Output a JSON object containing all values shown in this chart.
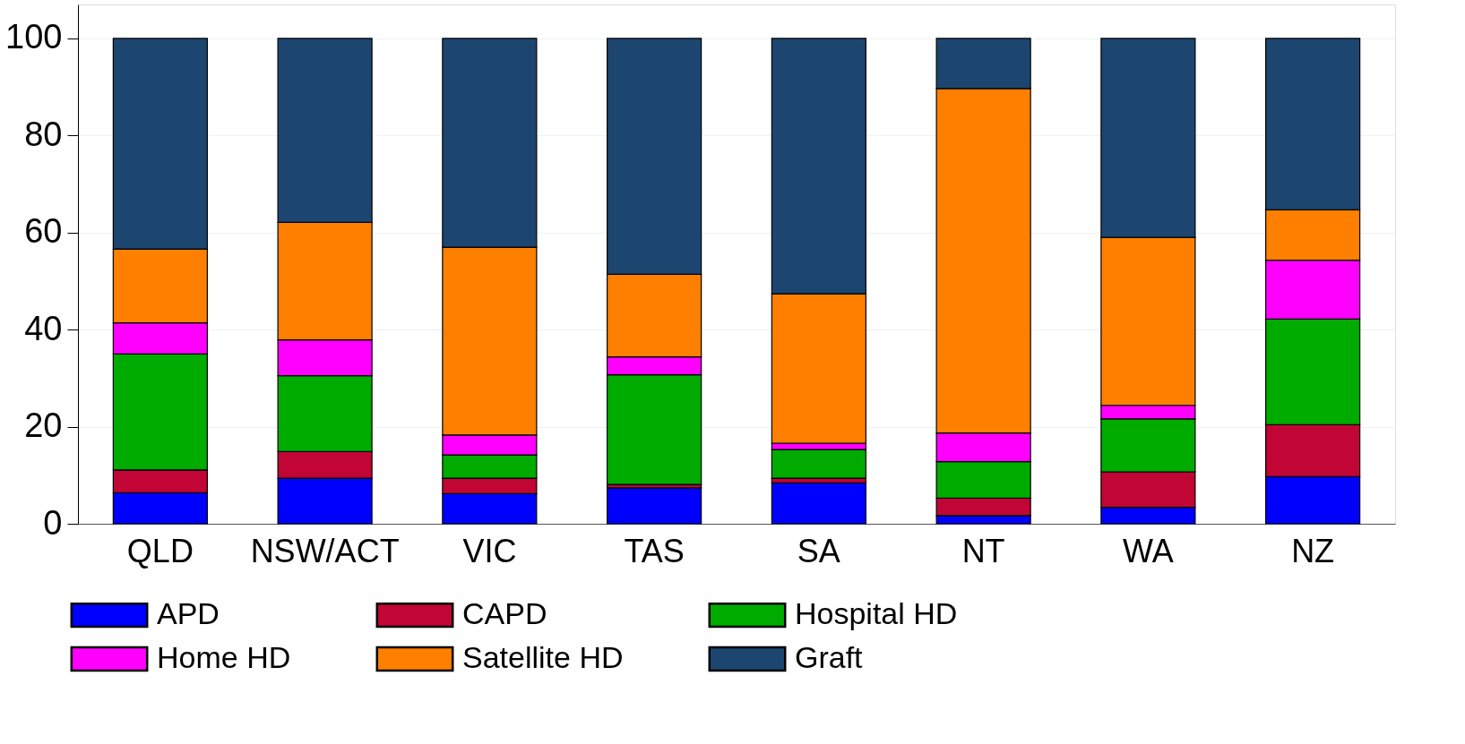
{
  "chart_data": {
    "type": "bar",
    "stacked": true,
    "categories": [
      "QLD",
      "NSW/ACT",
      "VIC",
      "TAS",
      "SA",
      "NT",
      "WA",
      "NZ"
    ],
    "series": [
      {
        "name": "APD",
        "color": "#0000ff",
        "values": [
          6.4,
          9.4,
          6.2,
          7.4,
          8.4,
          1.7,
          3.4,
          9.7
        ]
      },
      {
        "name": "CAPD",
        "color": "#c10534",
        "values": [
          4.7,
          5.5,
          3.2,
          0.7,
          1.0,
          3.6,
          7.3,
          10.7
        ]
      },
      {
        "name": "Hospital HD",
        "color": "#00ab00",
        "values": [
          23.9,
          15.6,
          4.8,
          22.6,
          5.9,
          7.5,
          10.9,
          21.8
        ]
      },
      {
        "name": "Home HD",
        "color": "#ff00ff",
        "values": [
          6.4,
          7.4,
          4.1,
          3.7,
          1.3,
          5.9,
          2.8,
          12.1
        ]
      },
      {
        "name": "Satellite HD",
        "color": "#ff7f00",
        "values": [
          15.2,
          24.2,
          38.7,
          17.0,
          30.8,
          71.0,
          34.6,
          10.4
        ]
      },
      {
        "name": "Graft",
        "color": "#1c466f",
        "values": [
          43.4,
          37.9,
          43.0,
          48.6,
          52.6,
          10.3,
          41.0,
          35.3
        ]
      }
    ],
    "ylim": [
      0,
      107
    ],
    "yticks": [
      0,
      20,
      40,
      60,
      80,
      100
    ],
    "grid": "y",
    "legend": "bottom"
  }
}
